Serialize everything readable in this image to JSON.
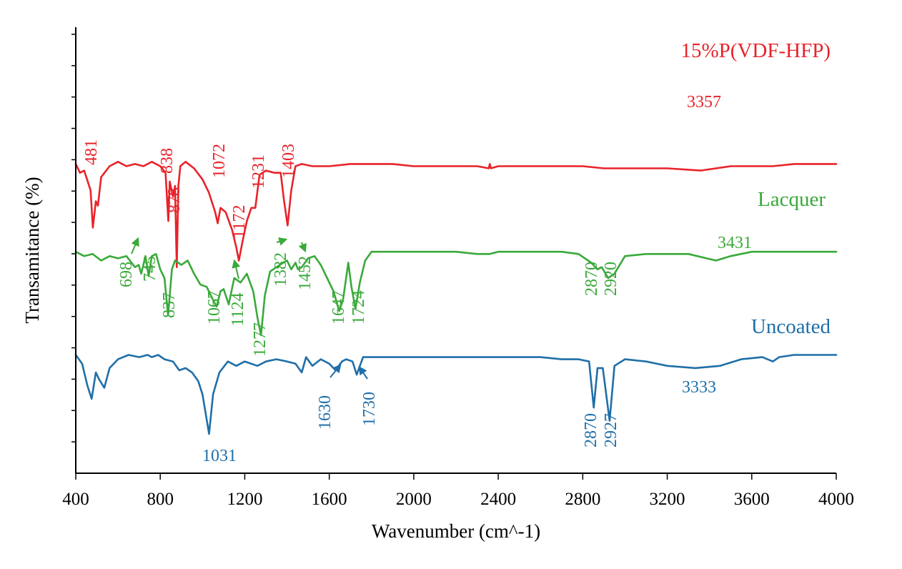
{
  "chart_data": {
    "type": "line",
    "xlabel": "Wavenumber (cm^-1)",
    "ylabel": "Transamitance (%)",
    "xlim": [
      400,
      4000
    ],
    "xticks": [
      400,
      800,
      1200,
      1600,
      2000,
      2400,
      2800,
      3200,
      3600,
      4000
    ],
    "xtick_labels": [
      "400",
      "800",
      "1200",
      "1600",
      "2000",
      "2400",
      "2800",
      "3200",
      "3600",
      "4000"
    ],
    "ylim": [
      0,
      100
    ],
    "ytick_count": 14,
    "grid": false,
    "legend": "series names printed at right end of each trace",
    "series": [
      {
        "name": "15%P(VDF-HFP)",
        "color": "#e8232a",
        "offset": 87,
        "x": [
          400,
          420,
          440,
          470,
          481,
          495,
          505,
          520,
          560,
          600,
          640,
          680,
          720,
          760,
          800,
          825,
          838,
          845,
          860,
          870,
          878,
          886,
          895,
          920,
          960,
          1000,
          1030,
          1060,
          1072,
          1085,
          1110,
          1140,
          1160,
          1172,
          1190,
          1210,
          1231,
          1250,
          1270,
          1300,
          1340,
          1370,
          1385,
          1403,
          1420,
          1440,
          1470,
          1520,
          1600,
          1700,
          1800,
          1900,
          2000,
          2100,
          2200,
          2300,
          2355,
          2360,
          2365,
          2400,
          2500,
          2600,
          2700,
          2800,
          2900,
          3000,
          3100,
          3200,
          3357,
          3500,
          3700,
          3800,
          4000
        ],
        "y": [
          100,
          96,
          97,
          88,
          71,
          83,
          81,
          94,
          99,
          101,
          99,
          100,
          99,
          101,
          99,
          96,
          74,
          92,
          85,
          90,
          53,
          90,
          99,
          101,
          98,
          93,
          87,
          78,
          73,
          80,
          78,
          70,
          62,
          56,
          65,
          74,
          80,
          80,
          95,
          97,
          96,
          96,
          84,
          72,
          88,
          99,
          100,
          99,
          99,
          100,
          100,
          100,
          99,
          99,
          99,
          99,
          98,
          100,
          98,
          99,
          99,
          99,
          99,
          99,
          98,
          98,
          98,
          98,
          97,
          99,
          99,
          100,
          100
        ]
      },
      {
        "name": "Lacquer",
        "color": "#3aa93a",
        "offset": 47,
        "x": [
          400,
          440,
          480,
          520,
          560,
          600,
          640,
          680,
          698,
          710,
          730,
          745,
          760,
          780,
          800,
          820,
          837,
          855,
          870,
          900,
          930,
          960,
          990,
          1020,
          1050,
          1067,
          1085,
          1100,
          1124,
          1150,
          1180,
          1210,
          1240,
          1260,
          1277,
          1295,
          1320,
          1350,
          1382,
          1400,
          1420,
          1440,
          1452,
          1470,
          1500,
          1530,
          1560,
          1590,
          1620,
          1647,
          1665,
          1690,
          1705,
          1724,
          1745,
          1770,
          1800,
          1900,
          2000,
          2100,
          2200,
          2300,
          2360,
          2400,
          2500,
          2600,
          2700,
          2780,
          2840,
          2870,
          2890,
          2920,
          2950,
          3000,
          3100,
          3200,
          3300,
          3431,
          3500,
          3600,
          3800,
          4000
        ],
        "y": [
          100,
          98,
          99,
          96,
          98,
          97,
          98,
          93,
          94,
          90,
          98,
          89,
          98,
          99,
          92,
          88,
          71,
          92,
          96,
          94,
          96,
          90,
          85,
          84,
          78,
          75,
          82,
          83,
          76,
          88,
          86,
          90,
          82,
          70,
          62,
          80,
          91,
          93,
          95,
          96,
          92,
          95,
          92,
          93,
          97,
          98,
          94,
          88,
          82,
          73,
          78,
          95,
          84,
          74,
          86,
          96,
          100,
          100,
          100,
          100,
          100,
          99,
          99,
          100,
          100,
          100,
          100,
          99,
          95,
          92,
          93,
          88,
          90,
          98,
          99,
          99,
          99,
          96,
          98,
          100,
          100,
          100
        ]
      },
      {
        "name": "Uncoated",
        "color": "#1f6fa8",
        "offset": 0,
        "x": [
          400,
          430,
          455,
          475,
          495,
          510,
          535,
          560,
          600,
          650,
          700,
          740,
          760,
          790,
          820,
          860,
          890,
          920,
          950,
          980,
          1000,
          1031,
          1050,
          1080,
          1120,
          1160,
          1200,
          1260,
          1300,
          1350,
          1400,
          1440,
          1470,
          1490,
          1520,
          1560,
          1600,
          1630,
          1660,
          1680,
          1710,
          1730,
          1760,
          1800,
          1900,
          2000,
          2100,
          2200,
          2300,
          2400,
          2500,
          2600,
          2700,
          2780,
          2830,
          2852,
          2870,
          2895,
          2927,
          2950,
          3000,
          3100,
          3200,
          3333,
          3450,
          3550,
          3650,
          3700,
          3730,
          3800,
          4000
        ],
        "y": [
          100,
          96,
          86,
          80,
          92,
          89,
          85,
          94,
          98,
          100,
          99,
          100,
          99,
          100,
          98,
          97,
          93,
          94,
          92,
          88,
          82,
          64,
          82,
          92,
          97,
          95,
          97,
          95,
          97,
          98,
          97,
          96,
          92,
          99,
          95,
          98,
          96,
          93,
          97,
          98,
          97,
          91,
          99,
          99,
          99,
          99,
          99,
          99,
          99,
          99,
          99,
          99,
          98,
          98,
          97,
          76,
          94,
          94,
          70,
          95,
          98,
          97,
          95,
          94,
          95,
          98,
          99,
          97,
          99,
          100,
          100
        ]
      }
    ],
    "annotations": [
      {
        "series": "15%P(VDF-HFP)",
        "text": "481",
        "x": 481,
        "rotated": true,
        "arrow": false
      },
      {
        "series": "15%P(VDF-HFP)",
        "text": "838",
        "x": 838,
        "rotated": true,
        "arrow": false
      },
      {
        "series": "15%P(VDF-HFP)",
        "text": "878",
        "x": 878,
        "rotated": true,
        "arrow": false
      },
      {
        "series": "15%P(VDF-HFP)",
        "text": "1072",
        "x": 1072,
        "rotated": true,
        "arrow": false
      },
      {
        "series": "15%P(VDF-HFP)",
        "text": "1172",
        "x": 1172,
        "rotated": true,
        "arrow": false
      },
      {
        "series": "15%P(VDF-HFP)",
        "text": "1231",
        "x": 1231,
        "rotated": true,
        "arrow": false
      },
      {
        "series": "15%P(VDF-HFP)",
        "text": "1403",
        "x": 1403,
        "rotated": true,
        "arrow": false
      },
      {
        "series": "15%P(VDF-HFP)",
        "text": "3357",
        "x": 3357,
        "rotated": false,
        "arrow": false
      },
      {
        "series": "Lacquer",
        "text": "698",
        "x": 698,
        "rotated": true,
        "arrow": true
      },
      {
        "series": "Lacquer",
        "text": "745",
        "x": 745,
        "rotated": true,
        "arrow": false
      },
      {
        "series": "Lacquer",
        "text": "837",
        "x": 837,
        "rotated": true,
        "arrow": false
      },
      {
        "series": "Lacquer",
        "text": "1067",
        "x": 1067,
        "rotated": true,
        "arrow": false
      },
      {
        "series": "Lacquer",
        "text": "1124",
        "x": 1124,
        "rotated": true,
        "arrow": true
      },
      {
        "series": "Lacquer",
        "text": "1277",
        "x": 1277,
        "rotated": true,
        "arrow": false
      },
      {
        "series": "Lacquer",
        "text": "1382",
        "x": 1382,
        "rotated": true,
        "arrow": true
      },
      {
        "series": "Lacquer",
        "text": "1452",
        "x": 1452,
        "rotated": true,
        "arrow": true
      },
      {
        "series": "Lacquer",
        "text": "1647",
        "x": 1647,
        "rotated": true,
        "arrow": false
      },
      {
        "series": "Lacquer",
        "text": "1724",
        "x": 1724,
        "rotated": true,
        "arrow": false
      },
      {
        "series": "Lacquer",
        "text": "2870",
        "x": 2870,
        "rotated": true,
        "arrow": false
      },
      {
        "series": "Lacquer",
        "text": "2920",
        "x": 2920,
        "rotated": true,
        "arrow": false
      },
      {
        "series": "Lacquer",
        "text": "3431",
        "x": 3431,
        "rotated": false,
        "arrow": false
      },
      {
        "series": "Uncoated",
        "text": "1031",
        "x": 1031,
        "rotated": false,
        "arrow": false
      },
      {
        "series": "Uncoated",
        "text": "1630",
        "x": 1630,
        "rotated": true,
        "arrow": true
      },
      {
        "series": "Uncoated",
        "text": "1730",
        "x": 1730,
        "rotated": true,
        "arrow": true
      },
      {
        "series": "Uncoated",
        "text": "2870",
        "x": 2870,
        "rotated": true,
        "arrow": false
      },
      {
        "series": "Uncoated",
        "text": "2927",
        "x": 2927,
        "rotated": true,
        "arrow": false
      },
      {
        "series": "Uncoated",
        "text": "3333",
        "x": 3333,
        "rotated": false,
        "arrow": false
      }
    ]
  }
}
